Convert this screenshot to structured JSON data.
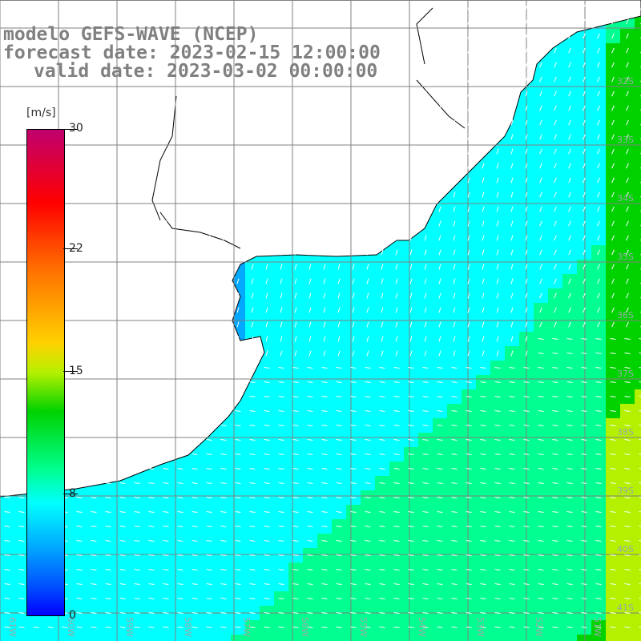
{
  "title": {
    "line1": "modelo GEFS-WAVE (NCEP)",
    "line2": "forecast date: 2023-02-15 12:00:00",
    "line3": "valid date: 2023-03-02 00:00:00"
  },
  "colorbar": {
    "unit": "[m/s]",
    "ticks": [
      "30",
      "22",
      "15",
      "8",
      "0"
    ],
    "tick_values": [
      30,
      22,
      15,
      8,
      0
    ],
    "colors": [
      "#0000ff",
      "#0050ff",
      "#00a8ff",
      "#00ffff",
      "#00ff90",
      "#00d200",
      "#b4f000",
      "#ffd200",
      "#ff6a00",
      "#ff0000",
      "#c0006e"
    ]
  },
  "map": {
    "type": "wind speed field with direction arrows",
    "region": "South Atlantic off Uruguay / southern Brazil / Argentina",
    "lat_labels": [
      "32S",
      "33S",
      "34S",
      "35S",
      "36S",
      "37S",
      "38S",
      "39S",
      "40S",
      "41S"
    ],
    "lon_labels": [
      "61W",
      "60W",
      "59W",
      "58W",
      "57W",
      "56W",
      "55W",
      "54W",
      "53W",
      "52W",
      "51W"
    ],
    "land_color": "#ffffff",
    "grid_color": "#808080",
    "arrow_color": "#ffffff"
  }
}
